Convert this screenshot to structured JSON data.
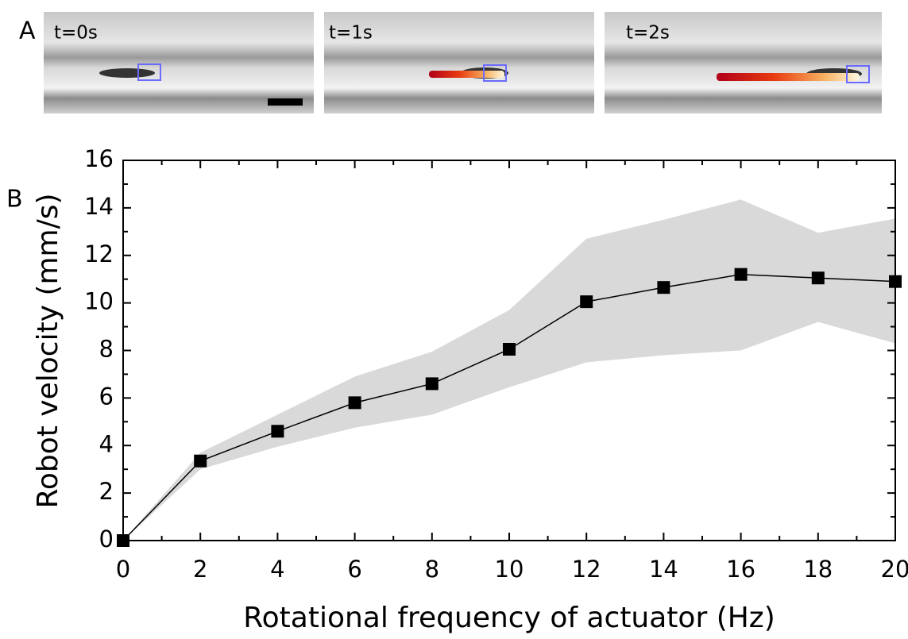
{
  "panels": {
    "a_label": "A",
    "b_label": "B",
    "frames": [
      "t=0s",
      "t=1s",
      "t=2s"
    ]
  },
  "chart_data": {
    "type": "line",
    "x_label": "Rotational frequency of actuator (Hz)",
    "y_label": "Robot velocity (mm/s)",
    "x": [
      0,
      2,
      4,
      6,
      8,
      10,
      12,
      14,
      16,
      18,
      20
    ],
    "series": [
      {
        "color": "#000000",
        "values": [
          0,
          3.35,
          4.6,
          5.8,
          6.6,
          8.05,
          10.05,
          10.65,
          11.2,
          11.05,
          10.9
        ]
      }
    ],
    "band": {
      "color": "#d9d9d9",
      "upper": [
        0,
        3.7,
        5.3,
        6.9,
        7.95,
        9.7,
        12.7,
        13.5,
        14.35,
        12.95,
        13.55
      ],
      "lower": [
        0,
        3.0,
        3.95,
        4.75,
        5.3,
        6.45,
        7.5,
        7.8,
        8.0,
        9.2,
        8.3
      ]
    },
    "xlim": [
      0,
      20
    ],
    "xticks": [
      0,
      2,
      4,
      6,
      8,
      10,
      12,
      14,
      16,
      18,
      20
    ],
    "xminorticks": [
      1,
      3,
      5,
      7,
      9,
      11,
      13,
      15,
      17,
      19
    ],
    "ylim": [
      0,
      16
    ],
    "yticks": [
      0,
      2,
      4,
      6,
      8,
      10,
      12,
      14,
      16
    ],
    "yminorticks": [
      1,
      3,
      5,
      7,
      9,
      11,
      13,
      15
    ]
  }
}
